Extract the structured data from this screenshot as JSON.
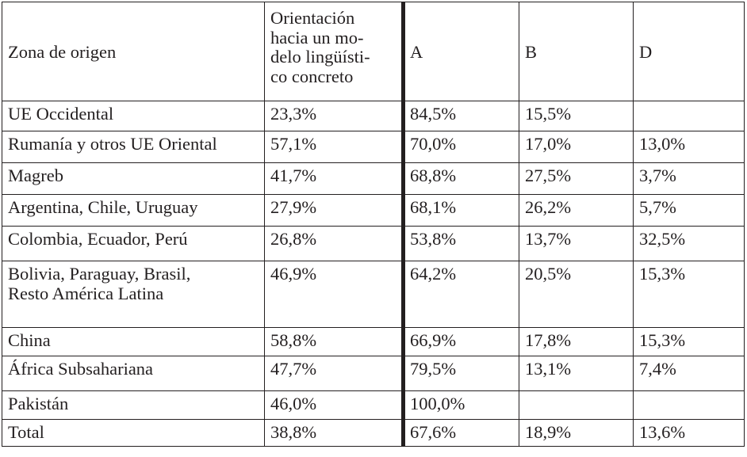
{
  "header": {
    "zona": "Zona de origen",
    "orientacion": [
      "Orientación",
      "hacia un mo-",
      "delo lingüísti-",
      "co concreto"
    ],
    "a": "A",
    "b": "B",
    "d": "D"
  },
  "rows": [
    {
      "zona": [
        "UE Occidental"
      ],
      "orientacion": "23,3%",
      "a": "84,5%",
      "b": "15,5%",
      "d": ""
    },
    {
      "zona": [
        "Rumanía y otros UE Oriental"
      ],
      "orientacion": "57,1%",
      "a": "70,0%",
      "b": "17,0%",
      "d": "13,0%"
    },
    {
      "zona": [
        "Magreb"
      ],
      "orientacion": "41,7%",
      "a": "68,8%",
      "b": "27,5%",
      "d": "3,7%"
    },
    {
      "zona": [
        "Argentina, Chile, Uruguay"
      ],
      "orientacion": "27,9%",
      "a": "68,1%",
      "b": "26,2%",
      "d": "5,7%"
    },
    {
      "zona": [
        "Colombia, Ecuador, Perú"
      ],
      "orientacion": "26,8%",
      "a": "53,8%",
      "b": "13,7%",
      "d": "32,5%"
    },
    {
      "zona": [
        "Bolivia, Paraguay, Brasil,",
        "Resto América Latina"
      ],
      "orientacion": "46,9%",
      "a": "64,2%",
      "b": "20,5%",
      "d": "15,3%"
    },
    {
      "zona": [
        "China"
      ],
      "orientacion": "58,8%",
      "a": "66,9%",
      "b": "17,8%",
      "d": "15,3%"
    },
    {
      "zona": [
        "África Subsahariana"
      ],
      "orientacion": "47,7%",
      "a": "79,5%",
      "b": "13,1%",
      "d": "7,4%"
    },
    {
      "zona": [
        "Pakistán"
      ],
      "orientacion": "46,0%",
      "a": "100,0%",
      "b": "",
      "d": ""
    },
    {
      "zona": [
        "Total"
      ],
      "orientacion": "38,8%",
      "a": "67,6%",
      "b": "18,9%",
      "d": "13,6%"
    }
  ]
}
